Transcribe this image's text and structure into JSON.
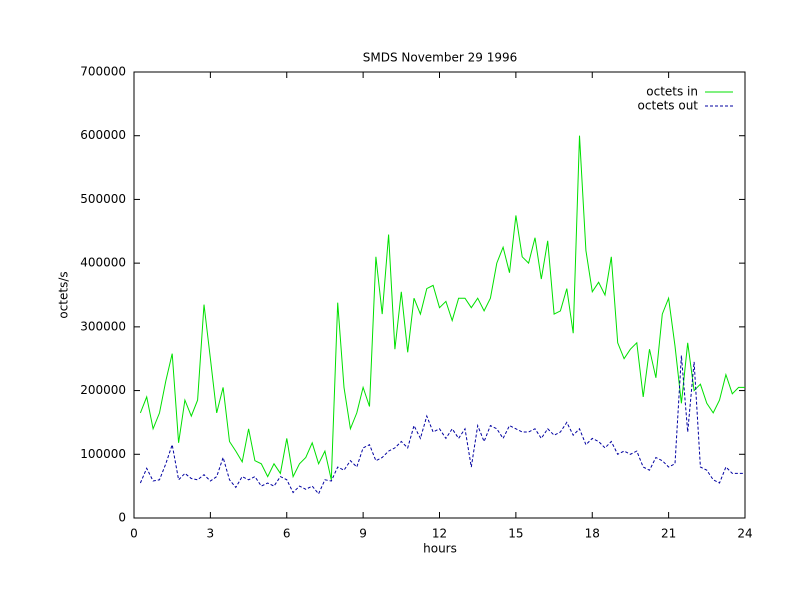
{
  "chart_data": {
    "type": "line",
    "title": "SMDS November 29 1996",
    "xlabel": "hours",
    "ylabel": "octets/s",
    "x": [
      0.25,
      0.5,
      0.75,
      1,
      1.25,
      1.5,
      1.75,
      2,
      2.25,
      2.5,
      2.75,
      3,
      3.25,
      3.5,
      3.75,
      4,
      4.25,
      4.5,
      4.75,
      5,
      5.25,
      5.5,
      5.75,
      6,
      6.25,
      6.5,
      6.75,
      7,
      7.25,
      7.5,
      7.75,
      8,
      8.25,
      8.5,
      8.75,
      9,
      9.25,
      9.5,
      9.75,
      10,
      10.25,
      10.5,
      10.75,
      11,
      11.25,
      11.5,
      11.75,
      12,
      12.25,
      12.5,
      12.75,
      13,
      13.25,
      13.5,
      13.75,
      14,
      14.25,
      14.5,
      14.75,
      15,
      15.25,
      15.5,
      15.75,
      16,
      16.25,
      16.5,
      16.75,
      17,
      17.25,
      17.5,
      17.75,
      18,
      18.25,
      18.5,
      18.75,
      19,
      19.25,
      19.5,
      19.75,
      20,
      20.25,
      20.5,
      20.75,
      21,
      21.25,
      21.5,
      21.75,
      22,
      22.25,
      22.5,
      22.75,
      23,
      23.25,
      23.5,
      23.75,
      24
    ],
    "series": [
      {
        "name": "octets in",
        "color": "#00e000",
        "dashed": false,
        "values": [
          165000,
          190000,
          140000,
          165000,
          215000,
          258000,
          118000,
          185000,
          160000,
          185000,
          335000,
          250000,
          165000,
          205000,
          120000,
          105000,
          88000,
          140000,
          90000,
          85000,
          65000,
          85000,
          70000,
          125000,
          65000,
          85000,
          95000,
          118000,
          85000,
          105000,
          60000,
          338000,
          205000,
          140000,
          165000,
          205000,
          175000,
          410000,
          320000,
          445000,
          265000,
          355000,
          260000,
          345000,
          320000,
          360000,
          365000,
          330000,
          340000,
          310000,
          345000,
          345000,
          330000,
          345000,
          325000,
          345000,
          400000,
          425000,
          385000,
          475000,
          410000,
          400000,
          440000,
          375000,
          435000,
          320000,
          325000,
          360000,
          290000,
          600000,
          420000,
          355000,
          370000,
          350000,
          410000,
          275000,
          250000,
          265000,
          275000,
          190000,
          265000,
          220000,
          320000,
          345000,
          270000,
          180000,
          275000,
          200000,
          210000,
          180000,
          165000,
          185000,
          225000,
          195000,
          205000,
          205000
        ]
      },
      {
        "name": "octets out",
        "color": "#0000a0",
        "dashed": true,
        "values": [
          55000,
          78000,
          58000,
          60000,
          85000,
          115000,
          60000,
          70000,
          62000,
          60000,
          68000,
          58000,
          65000,
          95000,
          60000,
          48000,
          65000,
          60000,
          65000,
          50000,
          55000,
          50000,
          65000,
          60000,
          40000,
          50000,
          45000,
          50000,
          38000,
          60000,
          58000,
          80000,
          75000,
          90000,
          80000,
          110000,
          115000,
          90000,
          95000,
          105000,
          110000,
          120000,
          110000,
          145000,
          125000,
          160000,
          135000,
          140000,
          125000,
          140000,
          125000,
          140000,
          80000,
          145000,
          120000,
          145000,
          140000,
          125000,
          145000,
          140000,
          135000,
          135000,
          140000,
          125000,
          140000,
          130000,
          135000,
          150000,
          130000,
          140000,
          115000,
          125000,
          120000,
          110000,
          120000,
          100000,
          105000,
          100000,
          105000,
          80000,
          75000,
          95000,
          90000,
          80000,
          85000,
          255000,
          135000,
          245000,
          80000,
          75000,
          60000,
          55000,
          80000,
          70000,
          70000,
          70000
        ]
      }
    ],
    "xlim": [
      0,
      24
    ],
    "xticks": [
      0,
      3,
      6,
      9,
      12,
      15,
      18,
      21,
      24
    ],
    "ylim": [
      0,
      700000
    ],
    "yticks": [
      0,
      100000,
      200000,
      300000,
      400000,
      500000,
      600000,
      700000
    ],
    "legend": "top-right"
  }
}
